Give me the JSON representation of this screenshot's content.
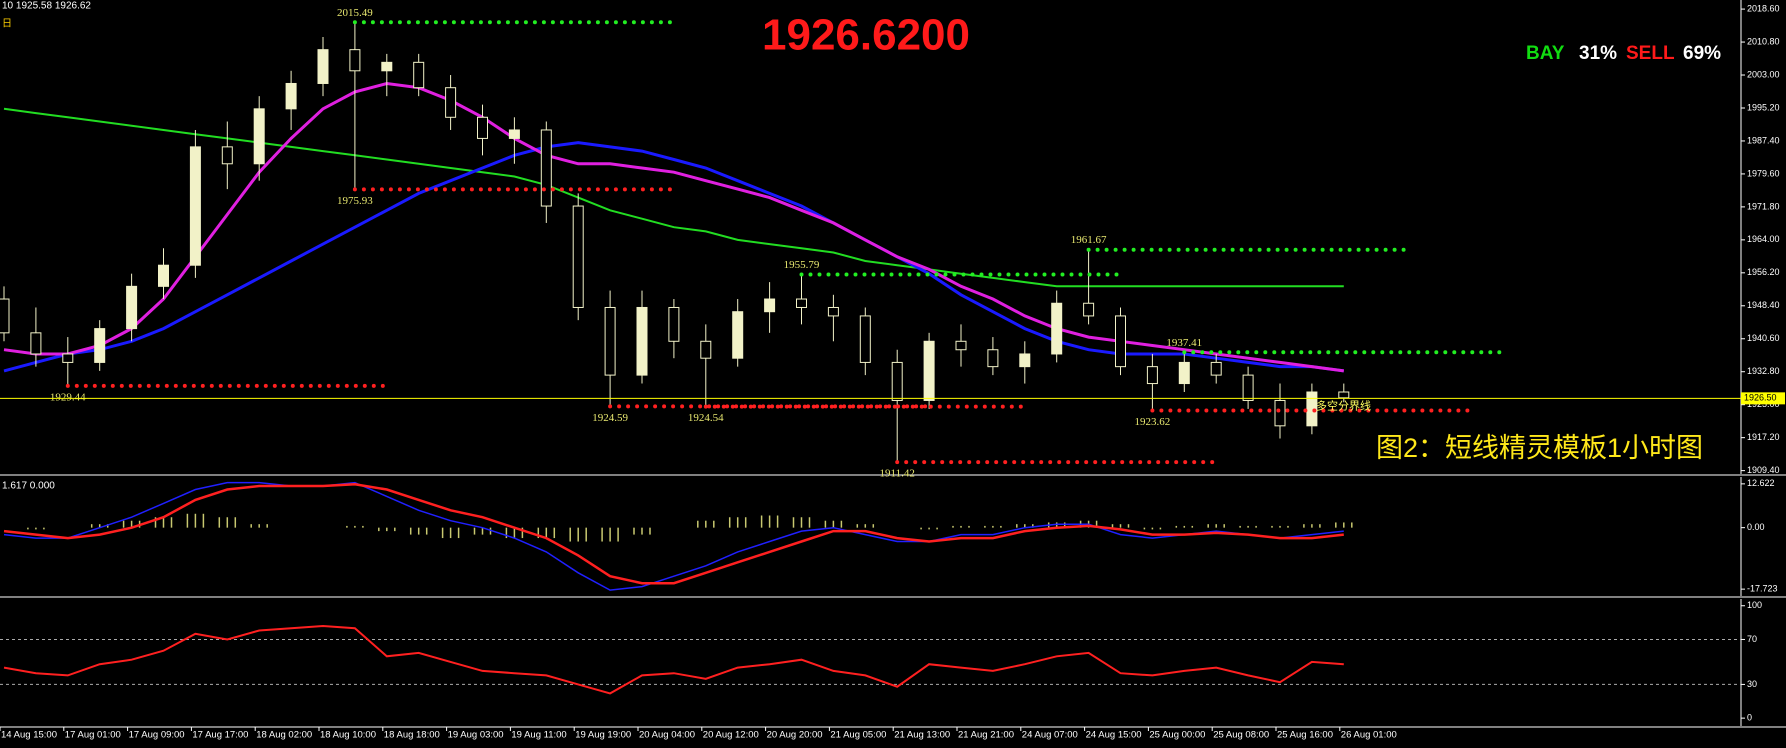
{
  "chart_data": [
    {
      "type": "candlestick",
      "title": "1926.6200",
      "info": "10 1925.58 1926.62",
      "period": "日",
      "categories": [
        "14 Aug 15:00",
        null,
        "17 Aug 01:00",
        null,
        "17 Aug 09:00",
        null,
        "17 Aug 17:00",
        null,
        "18 Aug 02:00",
        null,
        "18 Aug 10:00",
        null,
        "18 Aug 18:00",
        null,
        "19 Aug 03:00",
        null,
        "19 Aug 11:00",
        null,
        "19 Aug 19:00",
        null,
        "20 Aug 04:00",
        null,
        "20 Aug 12:00",
        null,
        "20 Aug 20:00",
        null,
        "21 Aug 05:00",
        null,
        "21 Aug 13:00",
        null,
        "21 Aug 21:00",
        null,
        "24 Aug 07:00",
        null,
        "24 Aug 15:00",
        null,
        "25 Aug 00:00",
        null,
        "25 Aug 08:00",
        null,
        "25 Aug 16:00",
        null,
        "26 Aug 01:00"
      ],
      "open": [
        1950,
        1942,
        1937,
        1935,
        1943,
        1953,
        1958,
        1986,
        1982,
        1995,
        2001,
        2009,
        2004,
        2006,
        2000,
        1993,
        1988,
        1990,
        1972,
        1948,
        1932,
        1948,
        1940,
        1936,
        1947,
        1950,
        1948,
        1946,
        1935,
        1926,
        1940,
        1938,
        1934,
        1937,
        1949,
        1946,
        1934,
        1930,
        1935,
        1932,
        1926,
        1920,
        1928
      ],
      "high": [
        1953,
        1948,
        1941,
        1945,
        1956,
        1962,
        1990,
        1992,
        1998,
        2004,
        2012,
        2015.49,
        2008,
        2008,
        2003,
        1996,
        1993,
        1992,
        1975,
        1952,
        1952,
        1950,
        1944,
        1950,
        1954,
        1955.79,
        1951,
        1948,
        1938,
        1942,
        1944,
        1941,
        1940,
        1952,
        1961.67,
        1948,
        1937,
        1937.41,
        1937,
        1934,
        1930,
        1930,
        1930
      ],
      "low": [
        1940,
        1934,
        1929.44,
        1933,
        1940,
        1950,
        1955,
        1976,
        1978,
        1990,
        1998,
        1975.93,
        1998,
        1998,
        1990,
        1984,
        1982,
        1968,
        1945,
        1924.59,
        1930,
        1936,
        1924.54,
        1934,
        1942,
        1944,
        1940,
        1932,
        1911.42,
        1924,
        1934,
        1932,
        1930,
        1935,
        1944,
        1932,
        1923.62,
        1928,
        1930,
        1924,
        1917,
        1918,
        1925.58
      ],
      "close": [
        1942,
        1937,
        1935,
        1943,
        1953,
        1958,
        1986,
        1982,
        1995,
        2001,
        2009,
        2004,
        2006,
        2000,
        1993,
        1988,
        1990,
        1972,
        1948,
        1932,
        1948,
        1940,
        1936,
        1947,
        1950,
        1948,
        1946,
        1935,
        1926,
        1940,
        1938,
        1934,
        1937,
        1949,
        1946,
        1934,
        1930,
        1935,
        1932,
        1926,
        1920,
        1928,
        1926.62
      ],
      "up_color": "#f2f2c8",
      "down_color": "#000000",
      "lines": [
        {
          "color": "#22dd22",
          "values": [
            1995,
            1994,
            1993,
            1992,
            1991,
            1990,
            1989,
            1988,
            1987,
            1986,
            1985,
            1984,
            1983,
            1982,
            1981,
            1980,
            1979,
            1977,
            1974,
            1971,
            1969,
            1967,
            1966,
            1964,
            1963,
            1962,
            1961,
            1959,
            1958,
            1957,
            1956,
            1955,
            1954,
            1953,
            1953,
            1953,
            1953,
            1953,
            1953,
            1953,
            1953,
            1953,
            1953
          ]
        },
        {
          "color": "#1a1aff",
          "values": [
            1933,
            1935,
            1937,
            1938,
            1940,
            1943,
            1947,
            1951,
            1955,
            1959,
            1963,
            1967,
            1971,
            1975,
            1978,
            1981,
            1984,
            1986,
            1987,
            1986,
            1985,
            1983,
            1981,
            1978,
            1975,
            1972,
            1968,
            1964,
            1960,
            1956,
            1951,
            1947,
            1943,
            1940,
            1938,
            1937,
            1937,
            1937,
            1936,
            1935,
            1934,
            1934,
            1933
          ]
        },
        {
          "color": "#e020e0",
          "values": [
            1938,
            1937,
            1937,
            1939,
            1943,
            1950,
            1960,
            1970,
            1980,
            1988,
            1995,
            1999,
            2001,
            2000,
            1997,
            1993,
            1988,
            1984,
            1982,
            1982,
            1981,
            1980,
            1978,
            1976,
            1974,
            1971,
            1968,
            1964,
            1960,
            1957,
            1953,
            1950,
            1946,
            1943,
            1941,
            1940,
            1939,
            1938,
            1937,
            1936,
            1935,
            1934,
            1933
          ]
        }
      ],
      "levels": [
        {
          "value": 2015.49,
          "color": "#22ee22"
        },
        {
          "value": 1975.93,
          "color": "#ff2020"
        },
        {
          "value": 1929.44,
          "color": "#ff2020"
        },
        {
          "value": 1924.59,
          "color": "#ff2020"
        },
        {
          "value": 1924.54,
          "color": "#ff2020"
        },
        {
          "value": 1955.79,
          "color": "#22ee22"
        },
        {
          "value": 1911.42,
          "color": "#ff2020"
        },
        {
          "value": 1961.67,
          "color": "#22ee22"
        },
        {
          "value": 1937.41,
          "color": "#22ee22"
        },
        {
          "value": 1923.62,
          "color": "#ff2020"
        }
      ],
      "current": {
        "value": 1926.5,
        "label": "1926.50",
        "text": "多空分界线",
        "color": "#ffff00"
      },
      "sentiment": {
        "categories": [
          "BAY",
          "SELL"
        ],
        "values": [
          31,
          69
        ],
        "value_labels": [
          "31%",
          "69%"
        ],
        "colors": [
          "#11dd11",
          "#ff1a1a"
        ]
      },
      "annotation": "图2：短线精灵模板1小时图",
      "ylim": [
        1908.6,
        2020.75
      ],
      "yticks": [
        {
          "value": 2018.6,
          "label": "2018.60"
        },
        {
          "value": 2010.8,
          "label": "2010.80"
        },
        {
          "value": 2003,
          "label": "2003.00"
        },
        {
          "value": 1995.2,
          "label": "1995.20"
        },
        {
          "value": 1987.4,
          "label": "1987.40"
        },
        {
          "value": 1979.6,
          "label": "1979.60"
        },
        {
          "value": 1971.8,
          "label": "1971.80"
        },
        {
          "value": 1964,
          "label": "1964.00"
        },
        {
          "value": 1956.2,
          "label": "1956.20"
        },
        {
          "value": 1948.4,
          "label": "1948.40"
        },
        {
          "value": 1940.6,
          "label": "1940.60"
        },
        {
          "value": 1932.8,
          "label": "1932.80"
        },
        {
          "value": 1925,
          "label": "1925.00"
        },
        {
          "value": 1917.2,
          "label": "1917.20"
        },
        {
          "value": 1909.4,
          "label": "1909.40"
        }
      ]
    },
    {
      "type": "macd",
      "info": "1.617 0.000",
      "histogram": {
        "color": "#c8c870",
        "values": [
          0,
          -0.5,
          0,
          1,
          2,
          3,
          4,
          3,
          1,
          0,
          0,
          0.5,
          -1,
          -2,
          -3,
          -2,
          -3,
          -3,
          -4,
          -4,
          -2,
          0,
          2,
          3,
          3.5,
          3,
          2,
          1,
          0,
          -0.5,
          0.5,
          0.5,
          1,
          1.5,
          2,
          1,
          -0.5,
          0.5,
          1,
          0.5,
          0.5,
          1,
          1.5
        ]
      },
      "lines": [
        {
          "color": "#2020ff",
          "values": [
            -2,
            -3,
            -3,
            0,
            3,
            7,
            11,
            13,
            13,
            12,
            12,
            13,
            9,
            5,
            2,
            0,
            -3,
            -7,
            -13,
            -18,
            -17,
            -14,
            -11,
            -7,
            -4,
            -1,
            0,
            -2,
            -4,
            -4,
            -2,
            -2,
            0,
            1,
            1,
            -2,
            -3,
            -2,
            -1,
            -2,
            -3,
            -2,
            -1
          ]
        },
        {
          "color": "#ff2020",
          "values": [
            -1,
            -2,
            -3,
            -2,
            0,
            3,
            8,
            11,
            12,
            12,
            12,
            12.5,
            11,
            8,
            5,
            3,
            0,
            -3,
            -8,
            -14,
            -16,
            -16,
            -13,
            -10,
            -7,
            -4,
            -1,
            -1,
            -3,
            -4,
            -3,
            -3,
            -1,
            0,
            0.5,
            -0.5,
            -2,
            -2,
            -1.5,
            -2,
            -3,
            -3,
            -2
          ]
        }
      ],
      "ylim": [
        -19.7,
        14.6
      ],
      "yticks": [
        12.622,
        {
          "value": 0,
          "label": "0.00"
        },
        -17.723
      ]
    },
    {
      "type": "line",
      "color": "#ff2020",
      "values": [
        45,
        40,
        38,
        48,
        52,
        60,
        75,
        70,
        78,
        80,
        82,
        80,
        55,
        58,
        50,
        42,
        40,
        38,
        30,
        22,
        38,
        40,
        35,
        45,
        48,
        52,
        42,
        38,
        28,
        48,
        45,
        42,
        48,
        55,
        58,
        40,
        38,
        42,
        45,
        38,
        32,
        50,
        48
      ],
      "ylim": [
        -7,
        106
      ],
      "yticks": [
        100,
        70,
        30,
        0
      ]
    }
  ]
}
